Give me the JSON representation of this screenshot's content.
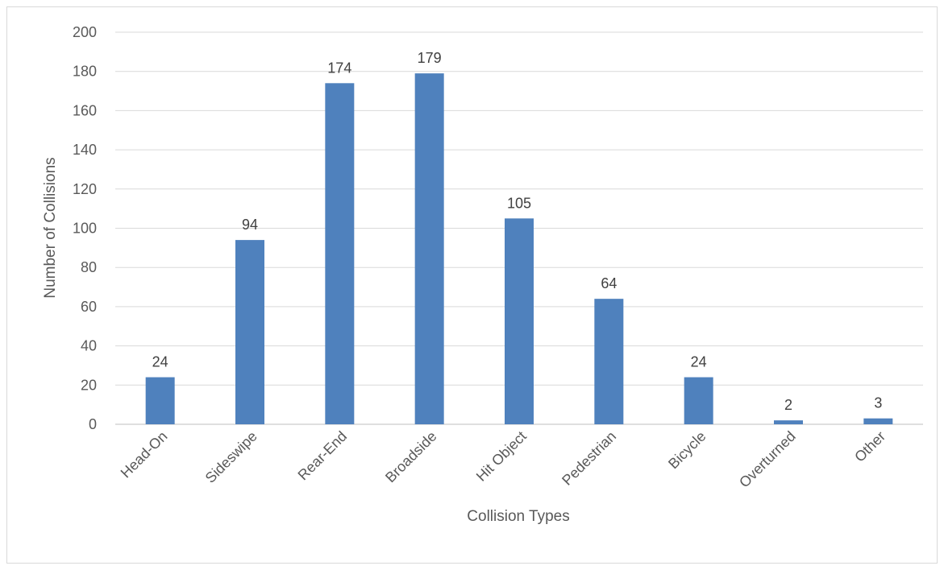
{
  "chart_data": {
    "type": "bar",
    "title": "",
    "xlabel": "Collision Types",
    "ylabel": "Number of Collisions",
    "categories": [
      "Head-On",
      "Sideswipe",
      "Rear-End",
      "Broadside",
      "Hit Object",
      "Pedestrian",
      "Bicycle",
      "Overturned",
      "Other"
    ],
    "values": [
      24,
      94,
      174,
      179,
      105,
      64,
      24,
      2,
      3
    ],
    "ylim": [
      0,
      200
    ],
    "yticks": [
      0,
      20,
      40,
      60,
      80,
      100,
      120,
      140,
      160,
      180,
      200
    ],
    "grid": true,
    "legend": "none",
    "bar_color": "#4f81bd",
    "gridline_color": "#d9d9d9"
  }
}
